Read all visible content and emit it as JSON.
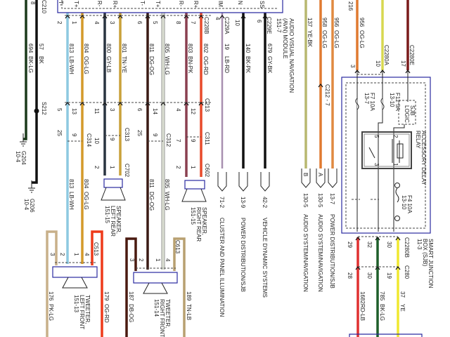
{
  "module": {
    "title": "AUDIO VISUAL NAVIGATION",
    "title2": "(AVN) MODULE",
    "ref": "151-7",
    "pins": [
      "T-",
      "T+",
      "R-",
      "R+",
      "T-",
      "T+",
      "R-",
      "R+",
      "IM",
      "N",
      "SS"
    ],
    "connectors": {
      "c228b": "C228B",
      "c229a": "C229A",
      "c229e": "C229E"
    }
  },
  "wires": [
    {
      "circuit": "694",
      "code": "BK-LG",
      "color": "#1b3a1b"
    },
    {
      "circuit": "57",
      "code": "BK",
      "color": "#111111"
    },
    {
      "circuit": "813",
      "code": "LB-WH",
      "color": "#8ec9e0"
    },
    {
      "circuit": "804",
      "code": "OG-LG",
      "color": "#d49a2a"
    },
    {
      "circuit": "800",
      "code": "GY-LB",
      "color": "#2a3440"
    },
    {
      "circuit": "801",
      "code": "TN-YE",
      "color": "#c9a13a"
    },
    {
      "circuit": "811",
      "code": "DG-OG",
      "color": "#3a1a14"
    },
    {
      "circuit": "805",
      "code": "WH-LG",
      "color": "#d8dcd0"
    },
    {
      "circuit": "803",
      "code": "BN-PK",
      "color": "#8a4050"
    },
    {
      "circuit": "802",
      "code": "OG-RD",
      "color": "#e84a2a"
    },
    {
      "circuit": "19",
      "code": "LB-RD",
      "color": "#a890b0"
    },
    {
      "circuit": "140",
      "code": "BK-PK",
      "color": "#111111"
    },
    {
      "circuit": "679",
      "code": "GY-BK",
      "color": "#111111"
    },
    {
      "circuit": "137",
      "code": "YE-BK",
      "color": "#b8b870"
    },
    {
      "circuit": "958",
      "code": "OG-LG",
      "color": "#e07a30"
    },
    {
      "circuit": "956",
      "code": "OG-LG",
      "color": "#e08a40"
    },
    {
      "circuit": "956",
      "code": "OG-LG",
      "color": "#e07a30"
    },
    {
      "circuit": "",
      "code": "",
      "color": "#d8d850"
    },
    {
      "circuit": "",
      "code": "",
      "color": "#7a1a1a"
    },
    {
      "circuit": "1682",
      "code": "RD-LB",
      "color": "#e03030"
    },
    {
      "circuit": "785",
      "code": "BK-LG",
      "color": "#1e5e2a"
    },
    {
      "circuit": "37",
      "code": "YE",
      "color": "#f0e830"
    },
    {
      "circuit": "176",
      "code": "PK-LG",
      "color": "#c8b08a"
    },
    {
      "circuit": "179",
      "code": "OG-RD",
      "color": "#ee3a1a"
    },
    {
      "circuit": "187",
      "code": "DB-OG",
      "color": "#4a1a10"
    },
    {
      "circuit": "189",
      "code": "TN-LB",
      "color": "#b8a070"
    }
  ],
  "module_pins": [
    "2",
    "1",
    "4",
    "3",
    "6",
    "5",
    "8",
    "7",
    "4",
    "10",
    "6"
  ],
  "c213_pins": [
    "5",
    "13",
    "11",
    "3",
    "6",
    "14",
    "4",
    "12"
  ],
  "inline_pins": [
    "25",
    "9",
    "10",
    "9",
    "25",
    "9",
    "7",
    "9"
  ],
  "speaker_pins": [
    "2",
    "1",
    "2",
    "1"
  ],
  "connectors": {
    "c210": "C210",
    "c210_pin": "8",
    "s212": "S212",
    "c213": "C213",
    "c314": "C314",
    "c313": "C313",
    "c312": "C312",
    "c311": "C311",
    "c702": "C702",
    "c602": "C602",
    "c513": "C513",
    "c613": "C613",
    "c212": "C212 - 7",
    "c216": "216",
    "c2280a": "C2280A",
    "c2280a_pin": "10",
    "c2280e": "C2280E",
    "c2280e_pin": "17",
    "c216_pin": "3",
    "c2280b": "C2280B",
    "c2280b_pins": [
      "29",
      "32",
      "30"
    ],
    "c280": "C280",
    "c280_pins": [
      "28",
      "30",
      "19"
    ]
  },
  "grounds": [
    {
      "id": "G204",
      "ref": "10-4"
    },
    {
      "id": "G206",
      "ref": "10-4"
    }
  ],
  "speakers": [
    {
      "name": "SPEAKER,",
      "loc": "LEFT REAR",
      "ref": "151-15"
    },
    {
      "name": "SPEAKER,",
      "loc": "RIGHT REAR",
      "ref": "151-15"
    },
    {
      "name": "TWEETER,",
      "loc": "LEFT FRONT",
      "ref": "151-13",
      "pins": [
        "3",
        "2",
        "1",
        "4"
      ]
    },
    {
      "name": "TWEETER,",
      "loc": "RIGHT FRONT",
      "ref": "151-14",
      "pins": [
        "3",
        "2",
        "1",
        "4"
      ]
    }
  ],
  "references": [
    {
      "tag": "",
      "page": "71-2",
      "label": "CLUSTER AND PANEL ILLUMINATION"
    },
    {
      "tag": "",
      "page": "13-9",
      "label": "POWER DISTRIBUTION/SJB"
    },
    {
      "tag": "",
      "page": "42-2",
      "label": "VEHICLE DYNAMIC SYSTEMS"
    },
    {
      "tag": "B",
      "page": "130-5",
      "label": "AUDIO SYSTEM/NAVIGATION"
    },
    {
      "tag": "A",
      "page": "130-5",
      "label": "AUDIO SYSTEM/NAVIGATION"
    },
    {
      "tag": "",
      "page": "13-7",
      "label": "POWER DISTRIBUTION/SJB"
    }
  ],
  "sjb": {
    "title": "SMART JUNCTION",
    "title2": "BOX (SJB)",
    "ref": "11-3",
    "f7": "F7  10A",
    "f7_ref": "13-7",
    "f12": "F12  5A",
    "f12_ref": "13-10",
    "f4": "F4  10A",
    "f4_ref": "13-10",
    "logic1": "SJB",
    "logic2": "LOGIC",
    "relay1": "ACCESSORY DELAY",
    "relay2": "RELAY",
    "relay_pins": [
      "5",
      "3",
      "2",
      "1"
    ]
  }
}
